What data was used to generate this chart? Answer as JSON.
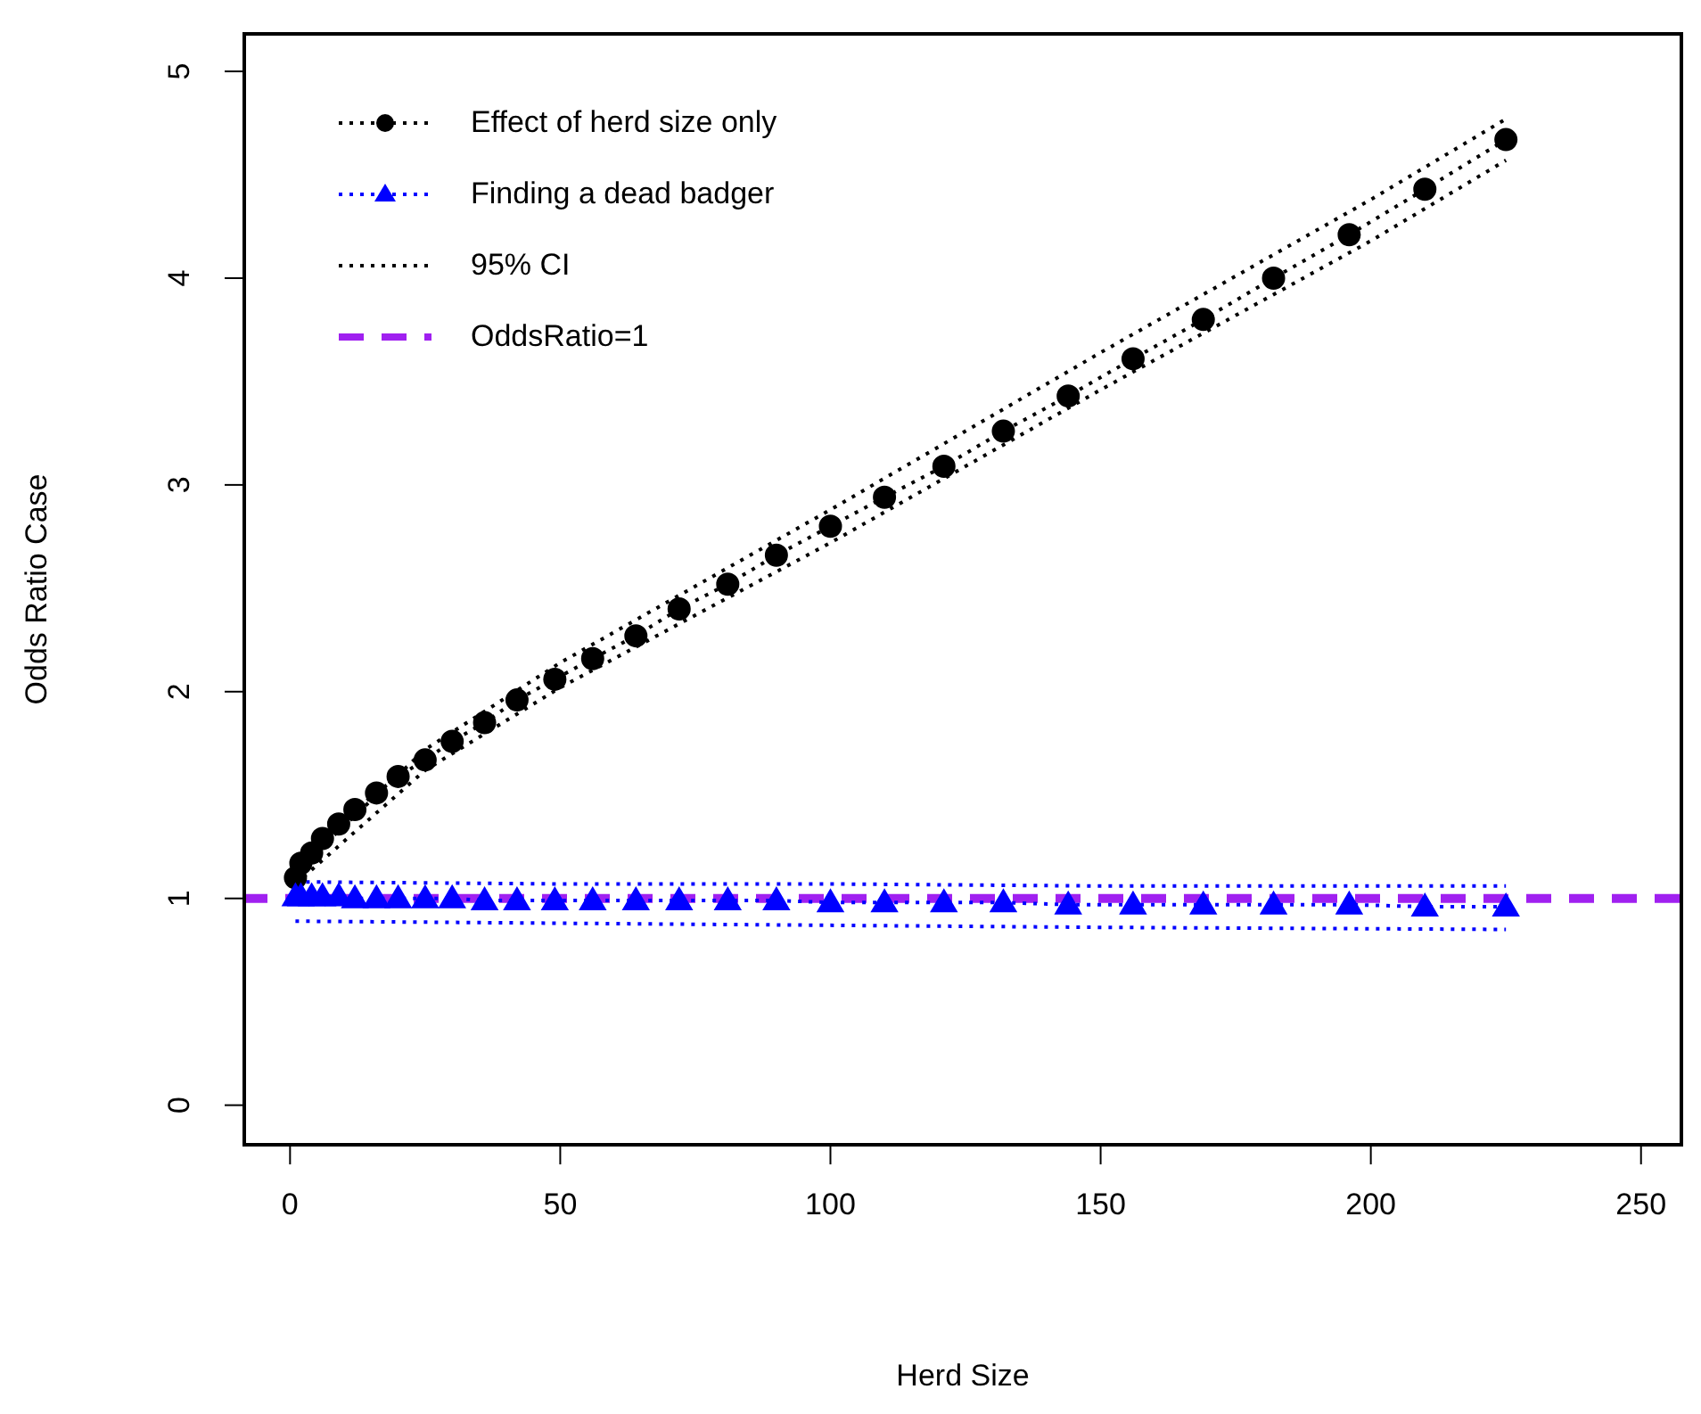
{
  "chart_data": {
    "type": "line",
    "xlabel": "Herd Size",
    "ylabel": "Odds Ratio Case",
    "xlim": [
      -8.8,
      257.8
    ],
    "ylim": [
      -0.2,
      5.19
    ],
    "xticks": [
      0,
      50,
      100,
      150,
      200,
      250
    ],
    "yticks": [
      0,
      1,
      2,
      3,
      4,
      5
    ],
    "legend": "top left",
    "series": [
      {
        "name": "Effect of herd size only",
        "color": "#000000",
        "marker": "circle",
        "line_style": "dotted",
        "x": [
          1,
          2,
          4,
          6,
          9,
          12,
          16,
          20,
          25,
          30,
          36,
          42,
          49,
          56,
          64,
          72,
          81,
          90,
          100,
          110,
          121,
          132,
          144,
          156,
          169,
          182,
          196,
          210,
          225
        ],
        "values": [
          1.1,
          1.17,
          1.22,
          1.29,
          1.36,
          1.43,
          1.51,
          1.59,
          1.67,
          1.76,
          1.85,
          1.96,
          2.06,
          2.16,
          2.27,
          2.4,
          2.52,
          2.66,
          2.8,
          2.94,
          3.09,
          3.26,
          3.43,
          3.61,
          3.8,
          4.0,
          4.21,
          4.43,
          4.67
        ]
      },
      {
        "name": "Finding a dead badger",
        "color": "#0000ff",
        "marker": "triangle",
        "line_style": "dotted",
        "x": [
          1,
          2,
          4,
          6,
          9,
          12,
          16,
          20,
          25,
          30,
          36,
          42,
          49,
          56,
          64,
          72,
          81,
          90,
          100,
          110,
          121,
          132,
          144,
          156,
          169,
          182,
          196,
          210,
          225
        ],
        "values": [
          1.01,
          1.01,
          1.01,
          1.01,
          1.01,
          1.0,
          1.0,
          1.0,
          1.0,
          1.0,
          0.99,
          0.99,
          0.99,
          0.99,
          0.99,
          0.99,
          0.99,
          0.99,
          0.98,
          0.98,
          0.98,
          0.98,
          0.97,
          0.97,
          0.97,
          0.97,
          0.97,
          0.96,
          0.96
        ]
      },
      {
        "name": "95% CI",
        "color": "#000000",
        "marker": "none",
        "line_style": "dotted",
        "x": [
          1,
          25,
          50,
          100,
          150,
          200,
          225
        ],
        "values": [
          1.13,
          1.72,
          2.14,
          2.88,
          3.64,
          4.38,
          4.77
        ]
      },
      {
        "color": "#000000",
        "marker": "none",
        "line_style": "dotted",
        "x": [
          1,
          25,
          50,
          100,
          150,
          200,
          225
        ],
        "values": [
          1.07,
          1.62,
          2.02,
          2.72,
          3.46,
          4.18,
          4.57
        ]
      },
      {
        "color": "#0000ff",
        "marker": "none",
        "line_style": "dotted",
        "x": [
          1,
          50,
          100,
          150,
          225
        ],
        "values": [
          1.08,
          1.07,
          1.07,
          1.06,
          1.06
        ]
      },
      {
        "color": "#0000ff",
        "marker": "none",
        "line_style": "dotted",
        "x": [
          1,
          50,
          100,
          150,
          225
        ],
        "values": [
          0.89,
          0.88,
          0.87,
          0.86,
          0.85
        ]
      }
    ],
    "ref_lines": [
      {
        "axis": "y",
        "value": 1,
        "label": "OddsRatio=1",
        "color": "#a020f0",
        "line_style": "dashed"
      }
    ]
  }
}
